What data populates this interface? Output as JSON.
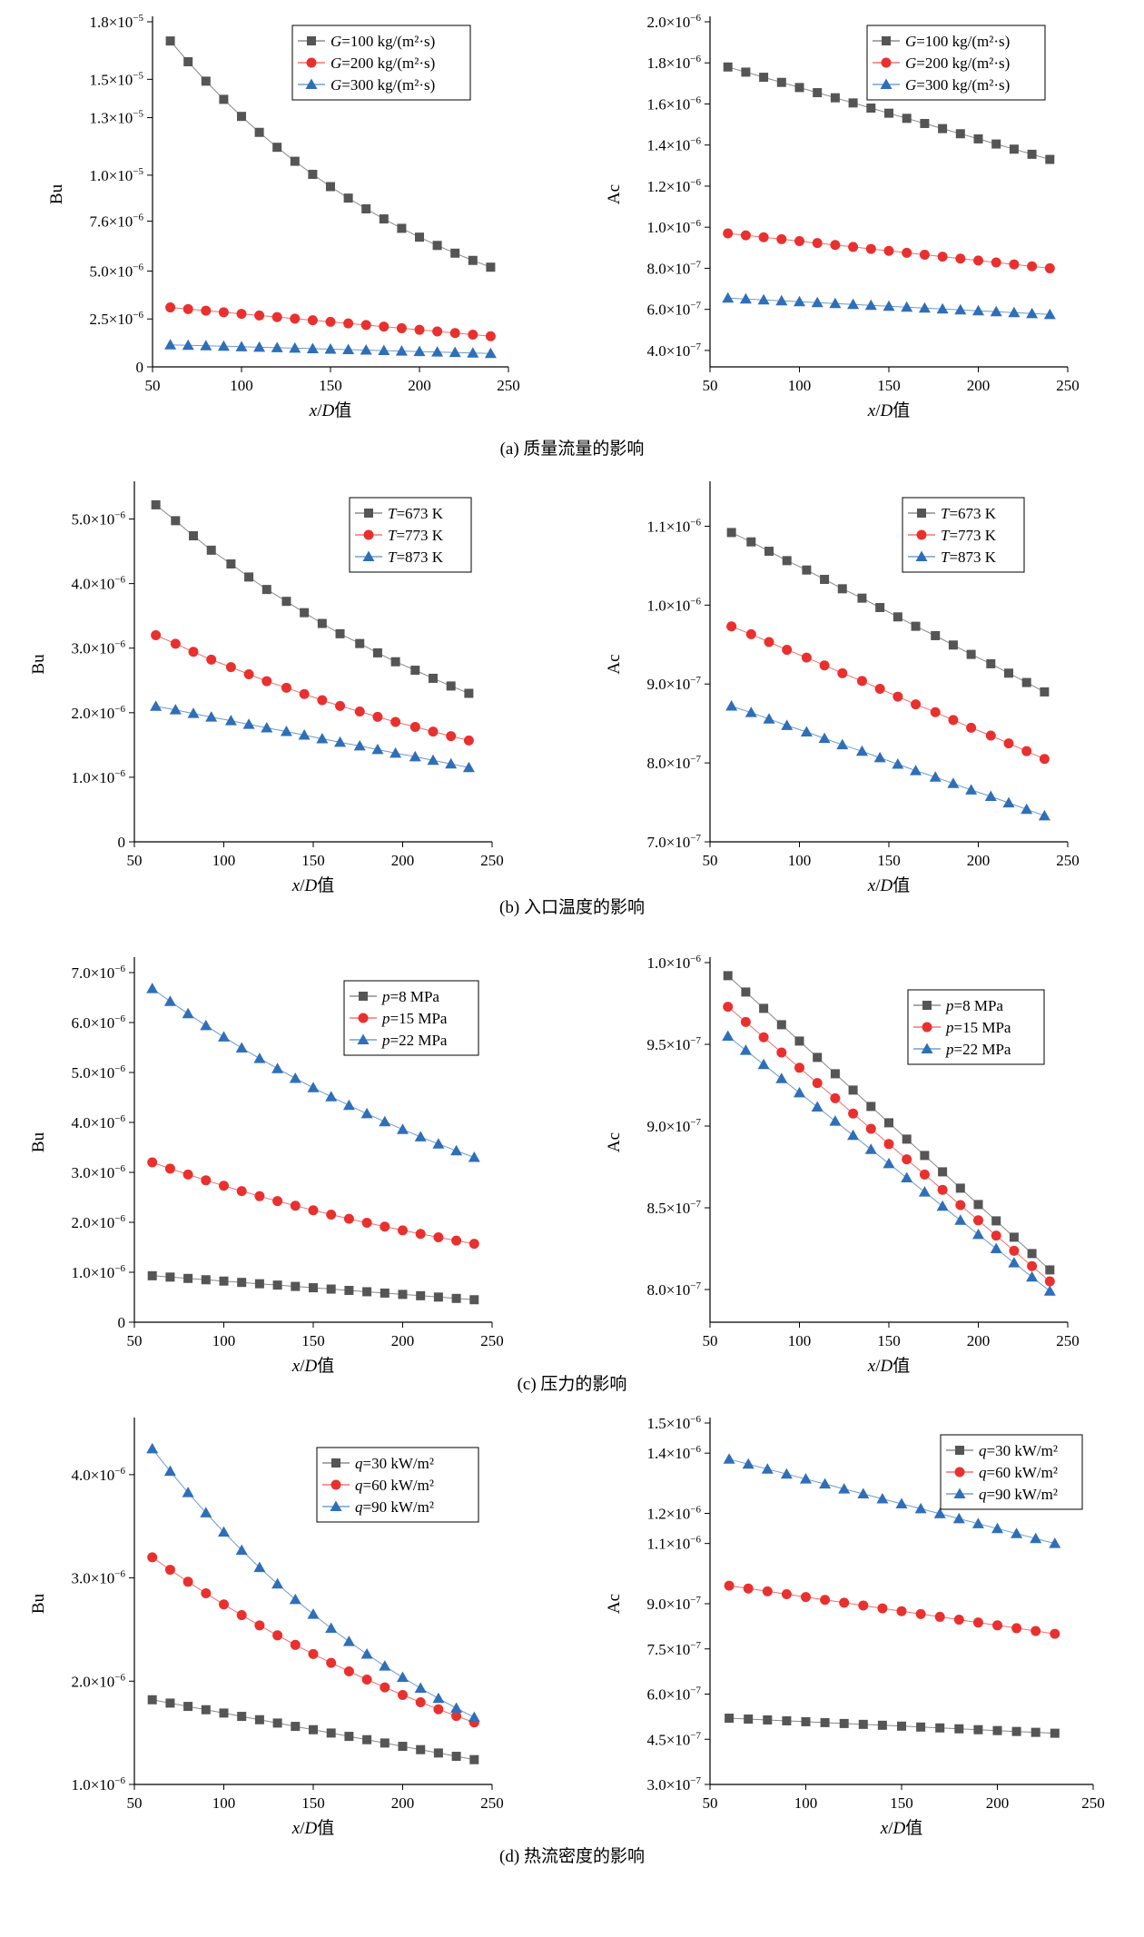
{
  "chart_data": [
    {
      "id": "a-bu",
      "type": "line",
      "x": [
        60,
        70,
        80,
        90,
        100,
        110,
        120,
        130,
        140,
        150,
        160,
        170,
        180,
        190,
        200,
        210,
        220,
        230,
        240
      ],
      "xlim": [
        50,
        250
      ],
      "xticks": [
        50,
        100,
        150,
        200,
        250
      ],
      "xlabel": "x/D值",
      "ylabel": "Bu",
      "ylim": [
        0,
        1.8e-05
      ],
      "yticks": [
        0,
        2.5e-06,
        5e-06,
        7.6e-06,
        1e-05,
        1.3e-05,
        1.5e-05,
        1.8e-05
      ],
      "ytick_labels": [
        {
          "m": "0",
          "e": ""
        },
        {
          "m": "2.5×10",
          "e": "−6"
        },
        {
          "m": "5.0×10",
          "e": "−6"
        },
        {
          "m": "7.6×10",
          "e": "−6"
        },
        {
          "m": "1.0×10",
          "e": "−5"
        },
        {
          "m": "1.3×10",
          "e": "−5"
        },
        {
          "m": "1.5×10",
          "e": "−5"
        },
        {
          "m": "1.8×10",
          "e": "−5"
        }
      ],
      "legend_position": "top-right",
      "series": [
        {
          "var": "G",
          "suffix": "=100 kg/(m²·s)",
          "marker": "square",
          "color": "#555555",
          "start": 1.7e-05,
          "end": 5.2e-06,
          "curve": "exp"
        },
        {
          "var": "G",
          "suffix": "=200 kg/(m²·s)",
          "marker": "circle",
          "color": "#e8312f",
          "start": 3.1e-06,
          "end": 1.6e-06,
          "curve": "lin"
        },
        {
          "var": "G",
          "suffix": "=300 kg/(m²·s)",
          "marker": "triangle",
          "color": "#2f6fb8",
          "start": 1.15e-06,
          "end": 7e-07,
          "curve": "lin"
        }
      ]
    },
    {
      "id": "a-ac",
      "type": "line",
      "x": [
        60,
        70,
        80,
        90,
        100,
        110,
        120,
        130,
        140,
        150,
        160,
        170,
        180,
        190,
        200,
        210,
        220,
        230,
        240
      ],
      "xlim": [
        50,
        250
      ],
      "xticks": [
        50,
        100,
        150,
        200,
        250
      ],
      "xlabel": "x/D值",
      "ylabel": "Ac",
      "ylim": [
        3.2e-07,
        2e-06
      ],
      "yticks": [
        4e-07,
        6e-07,
        8e-07,
        1e-06,
        1.2e-06,
        1.4e-06,
        1.6e-06,
        1.8e-06,
        2e-06
      ],
      "ytick_labels": [
        {
          "m": "4.0×10",
          "e": "−7"
        },
        {
          "m": "6.0×10",
          "e": "−7"
        },
        {
          "m": "8.0×10",
          "e": "−7"
        },
        {
          "m": "1.0×10",
          "e": "−6"
        },
        {
          "m": "1.2×10",
          "e": "−6"
        },
        {
          "m": "1.4×10",
          "e": "−6"
        },
        {
          "m": "1.6×10",
          "e": "−6"
        },
        {
          "m": "1.8×10",
          "e": "−6"
        },
        {
          "m": "2.0×10",
          "e": "−6"
        }
      ],
      "legend_position": "top-right",
      "series": [
        {
          "var": "G",
          "suffix": "=100 kg/(m²·s)",
          "marker": "square",
          "color": "#555555",
          "start": 1.78e-06,
          "end": 1.33e-06,
          "curve": "lin"
        },
        {
          "var": "G",
          "suffix": "=200 kg/(m²·s)",
          "marker": "circle",
          "color": "#e8312f",
          "start": 9.7e-07,
          "end": 8e-07,
          "curve": "lin"
        },
        {
          "var": "G",
          "suffix": "=300 kg/(m²·s)",
          "marker": "triangle",
          "color": "#2f6fb8",
          "start": 6.55e-07,
          "end": 5.75e-07,
          "curve": "lin"
        }
      ]
    },
    {
      "id": "b-bu",
      "type": "line",
      "x": [
        62,
        73,
        83,
        93,
        104,
        114,
        124,
        135,
        145,
        155,
        165,
        176,
        186,
        196,
        207,
        217,
        227,
        237
      ],
      "xlim": [
        50,
        250
      ],
      "xticks": [
        50,
        100,
        150,
        200,
        250
      ],
      "xlabel": "x/D值",
      "ylabel": "Bu",
      "ylim": [
        0,
        5.5e-06
      ],
      "yticks": [
        0,
        1e-06,
        2e-06,
        3e-06,
        4e-06,
        5e-06
      ],
      "ytick_labels": [
        {
          "m": "0",
          "e": ""
        },
        {
          "m": "1.0×10",
          "e": "−6"
        },
        {
          "m": "2.0×10",
          "e": "−6"
        },
        {
          "m": "3.0×10",
          "e": "−6"
        },
        {
          "m": "4.0×10",
          "e": "−6"
        },
        {
          "m": "5.0×10",
          "e": "−6"
        }
      ],
      "legend_position": "top-right",
      "series": [
        {
          "var": "T",
          "suffix": "=673 K",
          "marker": "square",
          "color": "#555555",
          "start": 5.22e-06,
          "end": 2.3e-06,
          "curve": "exp"
        },
        {
          "var": "T",
          "suffix": "=773 K",
          "marker": "circle",
          "color": "#e8312f",
          "start": 3.2e-06,
          "end": 1.57e-06,
          "curve": "exp"
        },
        {
          "var": "T",
          "suffix": "=873 K",
          "marker": "triangle",
          "color": "#2f6fb8",
          "start": 2.1e-06,
          "end": 1.15e-06,
          "curve": "lin"
        }
      ]
    },
    {
      "id": "b-ac",
      "type": "line",
      "x": [
        62,
        73,
        83,
        93,
        104,
        114,
        124,
        135,
        145,
        155,
        165,
        176,
        186,
        196,
        207,
        217,
        227,
        237
      ],
      "xlim": [
        50,
        250
      ],
      "xticks": [
        50,
        100,
        150,
        200,
        250
      ],
      "xlabel": "x/D值",
      "ylabel": "Ac",
      "ylim": [
        7e-07,
        1.15e-06
      ],
      "yticks": [
        7e-07,
        8e-07,
        9e-07,
        1e-06,
        1.1e-06
      ],
      "ytick_labels": [
        {
          "m": "7.0×10",
          "e": "−7"
        },
        {
          "m": "8.0×10",
          "e": "−7"
        },
        {
          "m": "9.0×10",
          "e": "−7"
        },
        {
          "m": "1.0×10",
          "e": "−6"
        },
        {
          "m": "1.1×10",
          "e": "−6"
        }
      ],
      "legend_position": "top-right",
      "series": [
        {
          "var": "T",
          "suffix": "=673 K",
          "marker": "square",
          "color": "#555555",
          "start": 1.092e-06,
          "end": 8.9e-07,
          "curve": "lin"
        },
        {
          "var": "T",
          "suffix": "=773 K",
          "marker": "circle",
          "color": "#e8312f",
          "start": 9.73e-07,
          "end": 8.05e-07,
          "curve": "lin"
        },
        {
          "var": "T",
          "suffix": "=873 K",
          "marker": "triangle",
          "color": "#2f6fb8",
          "start": 8.72e-07,
          "end": 7.33e-07,
          "curve": "lin"
        }
      ]
    },
    {
      "id": "c-bu",
      "type": "line",
      "x": [
        60,
        70,
        80,
        90,
        100,
        110,
        120,
        130,
        140,
        150,
        160,
        170,
        180,
        190,
        200,
        210,
        220,
        230,
        240
      ],
      "xlim": [
        50,
        250
      ],
      "xticks": [
        50,
        100,
        150,
        200,
        250
      ],
      "xlabel": "x/D值",
      "ylabel": "Bu",
      "ylim": [
        0,
        7.2e-06
      ],
      "yticks": [
        0,
        1e-06,
        2e-06,
        3e-06,
        4e-06,
        5e-06,
        6e-06,
        7e-06
      ],
      "ytick_labels": [
        {
          "m": "0",
          "e": ""
        },
        {
          "m": "1.0×10",
          "e": "−6"
        },
        {
          "m": "2.0×10",
          "e": "−6"
        },
        {
          "m": "3.0×10",
          "e": "−6"
        },
        {
          "m": "4.0×10",
          "e": "−6"
        },
        {
          "m": "5.0×10",
          "e": "−6"
        },
        {
          "m": "6.0×10",
          "e": "−6"
        },
        {
          "m": "7.0×10",
          "e": "−6"
        }
      ],
      "legend_position": "top-right",
      "series": [
        {
          "var": "p",
          "suffix": "=8 MPa",
          "marker": "square",
          "color": "#555555",
          "start": 9.3e-07,
          "end": 4.5e-07,
          "curve": "lin"
        },
        {
          "var": "p",
          "suffix": "=15 MPa",
          "marker": "circle",
          "color": "#e8312f",
          "start": 3.2e-06,
          "end": 1.57e-06,
          "curve": "exp"
        },
        {
          "var": "p",
          "suffix": "=22 MPa",
          "marker": "triangle",
          "color": "#2f6fb8",
          "start": 6.68e-06,
          "end": 3.3e-06,
          "curve": "exp"
        }
      ]
    },
    {
      "id": "c-ac",
      "type": "line",
      "x": [
        60,
        70,
        80,
        90,
        100,
        110,
        120,
        130,
        140,
        150,
        160,
        170,
        180,
        190,
        200,
        210,
        220,
        230,
        240
      ],
      "xlim": [
        50,
        250
      ],
      "xticks": [
        50,
        100,
        150,
        200,
        250
      ],
      "xlabel": "x/D值",
      "ylabel": "Ac",
      "ylim": [
        7.8e-07,
        1e-06
      ],
      "yticks": [
        8e-07,
        8.5e-07,
        9e-07,
        9.5e-07,
        1e-06
      ],
      "ytick_labels": [
        {
          "m": "8.0×10",
          "e": "−7"
        },
        {
          "m": "8.5×10",
          "e": "−7"
        },
        {
          "m": "9.0×10",
          "e": "−7"
        },
        {
          "m": "9.5×10",
          "e": "−7"
        },
        {
          "m": "1.0×10",
          "e": "−6"
        }
      ],
      "legend_position": "top-right",
      "series": [
        {
          "var": "p",
          "suffix": "=8 MPa",
          "marker": "square",
          "color": "#555555",
          "start": 9.92e-07,
          "end": 8.12e-07,
          "curve": "lin"
        },
        {
          "var": "p",
          "suffix": "=15 MPa",
          "marker": "circle",
          "color": "#e8312f",
          "start": 9.73e-07,
          "end": 8.05e-07,
          "curve": "lin"
        },
        {
          "var": "p",
          "suffix": "=22 MPa",
          "marker": "triangle",
          "color": "#2f6fb8",
          "start": 9.55e-07,
          "end": 7.99e-07,
          "curve": "lin"
        }
      ]
    },
    {
      "id": "d-bu",
      "type": "line",
      "x": [
        60,
        70,
        80,
        90,
        100,
        110,
        120,
        130,
        140,
        150,
        160,
        170,
        180,
        190,
        200,
        210,
        220,
        230,
        240
      ],
      "xlim": [
        50,
        250
      ],
      "xticks": [
        50,
        100,
        150,
        200,
        250
      ],
      "xlabel": "x/D值",
      "ylabel": "Bu",
      "ylim": [
        1e-06,
        4.5e-06
      ],
      "yticks": [
        1e-06,
        2e-06,
        3e-06,
        4e-06
      ],
      "ytick_labels": [
        {
          "m": "1.0×10",
          "e": "−6"
        },
        {
          "m": "2.0×10",
          "e": "−6"
        },
        {
          "m": "3.0×10",
          "e": "−6"
        },
        {
          "m": "4.0×10",
          "e": "−6"
        }
      ],
      "legend_position": "top-right",
      "series": [
        {
          "var": "q",
          "suffix": "=30 kW/m²",
          "marker": "square",
          "color": "#555555",
          "start": 1.82e-06,
          "end": 1.24e-06,
          "curve": "lin"
        },
        {
          "var": "q",
          "suffix": "=60 kW/m²",
          "marker": "circle",
          "color": "#e8312f",
          "start": 3.2e-06,
          "end": 1.6e-06,
          "curve": "exp"
        },
        {
          "var": "q",
          "suffix": "=90 kW/m²",
          "marker": "triangle",
          "color": "#2f6fb8",
          "start": 4.25e-06,
          "end": 1.65e-06,
          "curve": "exp"
        }
      ]
    },
    {
      "id": "d-ac",
      "type": "line",
      "x": [
        60,
        70,
        80,
        90,
        100,
        110,
        120,
        130,
        140,
        150,
        160,
        170,
        180,
        190,
        200,
        210,
        220,
        230
      ],
      "xlim": [
        50,
        250
      ],
      "xticks": [
        50,
        100,
        150,
        200,
        250
      ],
      "xlabel": "x/D值",
      "ylabel": "Ac",
      "ylim": [
        3e-07,
        1.5e-06
      ],
      "yticks": [
        3e-07,
        4.5e-07,
        6e-07,
        7.5e-07,
        9e-07,
        1.1e-06,
        1.2e-06,
        1.4e-06,
        1.5e-06
      ],
      "ytick_labels": [
        {
          "m": "3.0×10",
          "e": "−7"
        },
        {
          "m": "4.5×10",
          "e": "−7"
        },
        {
          "m": "6.0×10",
          "e": "−7"
        },
        {
          "m": "7.5×10",
          "e": "−7"
        },
        {
          "m": "9.0×10",
          "e": "−7"
        },
        {
          "m": "1.1×10",
          "e": "−6"
        },
        {
          "m": "1.2×10",
          "e": "−6"
        },
        {
          "m": "1.4×10",
          "e": "−6"
        },
        {
          "m": "1.5×10",
          "e": "−6"
        }
      ],
      "legend_position": "top-right",
      "series": [
        {
          "var": "q",
          "suffix": "=30 kW/m²",
          "marker": "square",
          "color": "#555555",
          "start": 5.2e-07,
          "end": 4.7e-07,
          "curve": "lin"
        },
        {
          "var": "q",
          "suffix": "=60 kW/m²",
          "marker": "circle",
          "color": "#e8312f",
          "start": 9.6e-07,
          "end": 8e-07,
          "curve": "lin"
        },
        {
          "var": "q",
          "suffix": "=90 kW/m²",
          "marker": "triangle",
          "color": "#2f6fb8",
          "start": 1.38e-06,
          "end": 1.1e-06,
          "curve": "lin"
        }
      ]
    }
  ],
  "captions": [
    "(a) 质量流量的影响",
    "(b) 入口温度的影响",
    "(c) 压力的影响",
    "(d) 热流密度的影响"
  ]
}
